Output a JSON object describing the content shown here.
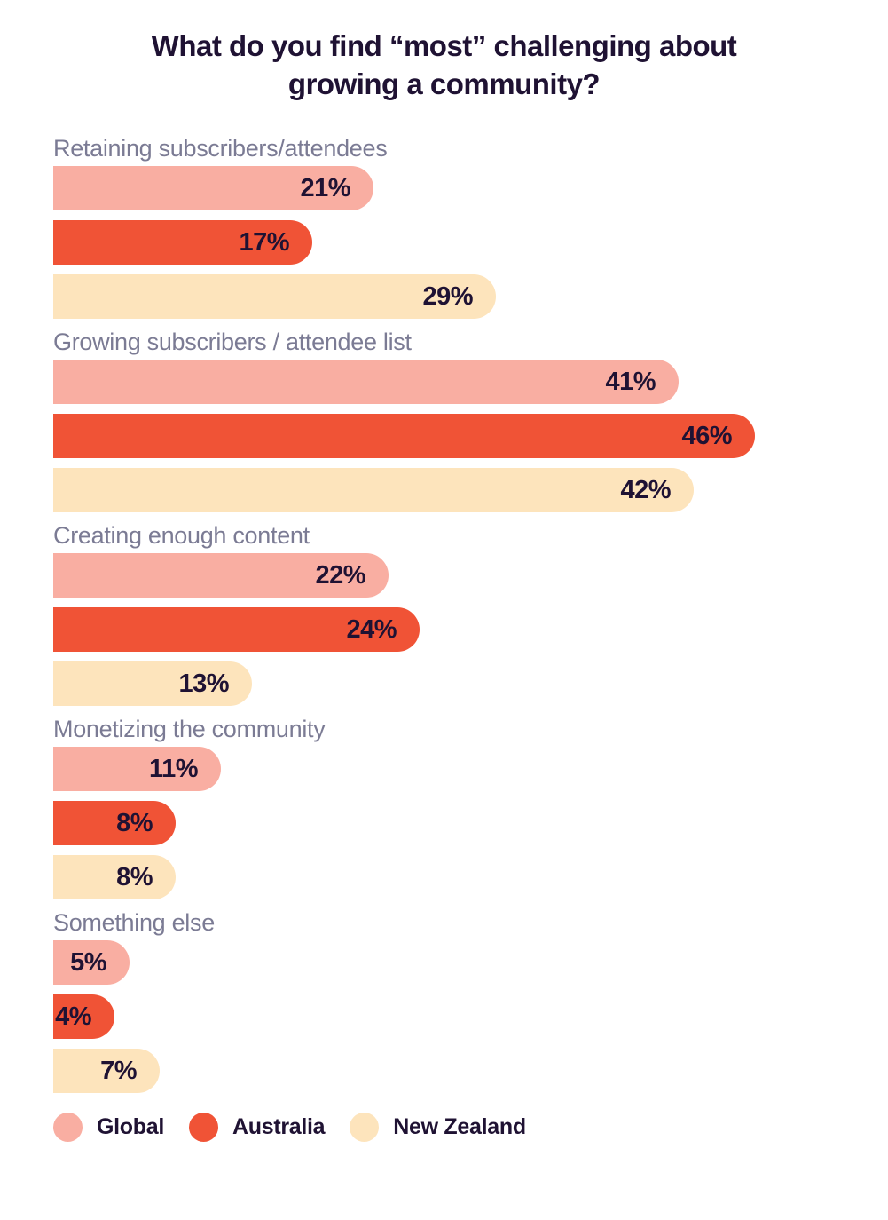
{
  "title": {
    "line1": "What do you find “most” challenging about",
    "line2": "growing a community?"
  },
  "colors": {
    "background": "#FFFFFF",
    "title_text": "#1F1233",
    "category_label_text": "#7B7B94",
    "value_text": "#1F1233",
    "global": "#F9AEA2",
    "australia": "#F05336",
    "new_zealand": "#FDE4BC"
  },
  "chart_data": {
    "type": "bar",
    "orientation": "horizontal",
    "title": "What do you find “most” challenging about growing a community?",
    "categories": [
      "Retaining subscribers/attendees",
      "Growing subscribers / attendee list",
      "Creating enough content",
      "Monetizing the community",
      "Something else"
    ],
    "series": [
      {
        "name": "Global",
        "color": "#F9AEA2",
        "values": [
          21,
          41,
          22,
          11,
          5
        ]
      },
      {
        "name": "Australia",
        "color": "#F05336",
        "values": [
          17,
          46,
          24,
          8,
          4
        ]
      },
      {
        "name": "New Zealand",
        "color": "#FDE4BC",
        "values": [
          29,
          42,
          13,
          8,
          7
        ]
      }
    ],
    "value_suffix": "%",
    "xlim": [
      0,
      50
    ],
    "grid": false,
    "axes_visible": false,
    "value_labels": "inside-end",
    "legend_position": "bottom-left"
  },
  "legend": {
    "items": [
      {
        "label": "Global",
        "color": "#F9AEA2"
      },
      {
        "label": "Australia",
        "color": "#F05336"
      },
      {
        "label": "New Zealand",
        "color": "#FDE4BC"
      }
    ]
  }
}
